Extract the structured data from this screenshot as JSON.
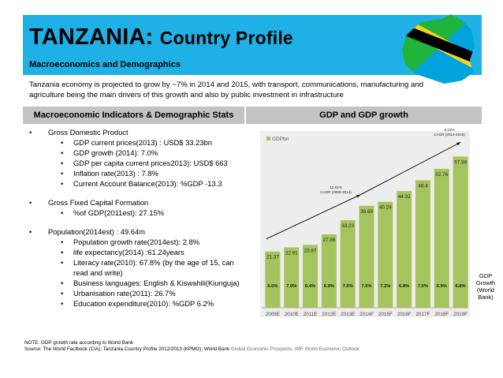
{
  "header": {
    "title_country": "TANZANIA:",
    "title_rest": "Country Profile",
    "subtitle": "Macroeconomics and Demographics"
  },
  "intro": "Tanzania economy is projected to grow by ~7% in 2014 and 2015, with transport, communications, manufacturing and agriculture being the main drivers of this growth and also by public investment in infrastructure",
  "left_panel": {
    "heading": "Macroeconomic Indicators & Demographic Stats",
    "gdp": {
      "label": "Gross Domestic Product",
      "items": [
        "GDP current prices(2013) : USD$ 33.23bn",
        "GDP growth (2014): 7.0%",
        "GDP per capita current prices2013): USD$ 663",
        "Inflation rate(2013) : 7.8%",
        "Current Account Balance(2013): %GDP -13.3"
      ]
    },
    "gfcf": {
      "label": "Gross Fixed Capital Formation",
      "items": [
        "%of GDP(2011est): 27.15%"
      ]
    },
    "population": {
      "label": "Population(2014est) : 49.64m",
      "items": [
        "Population growth rate(2014est): 2.8%",
        "life expectancy(2014) :61.24years",
        "Literacy rate(2010): 67.8% (by the age of 15, can read and write)",
        "Business languages: English & Kiswahili(Kiunguja)",
        "Urbanisation rate(2011): 26.7%",
        "Education expenditure(2010): %GDP 6.2%"
      ]
    }
  },
  "right_panel": {
    "heading": "GDP and GDP growth"
  },
  "chart_data": {
    "type": "bar",
    "categories": [
      "2009E",
      "2010E",
      "2011E",
      "2012E",
      "2013E",
      "2014F",
      "2015F",
      "2016F",
      "2017F",
      "2018F",
      "2019F"
    ],
    "series": [
      {
        "name": "GDPbn",
        "values": [
          21.37,
          22.91,
          23.87,
          27.86,
          33.23,
          38.69,
          40.24,
          44.32,
          48.4,
          52.76,
          57.39
        ]
      }
    ],
    "growth_labels": [
      "6.0%",
      "7.0%",
      "6.4%",
      "6.9%",
      "7.0%",
      "7.0%",
      "7.2%",
      "6.8%",
      "7.0%",
      "6.9%",
      "6.8%"
    ],
    "growth_series_label": "GDP Growth (World Bank)",
    "ylim": [
      0,
      65
    ],
    "annotations": [
      {
        "text_line1": "12.61%",
        "text_line2": "CAGR (2009-2014)"
      },
      {
        "text_line1": "8.21%",
        "text_line2": "CAGR (2014-2019)"
      }
    ],
    "colors": {
      "bar": "#a6c45e",
      "plot_bg": "#ededed",
      "arrow": "#000000"
    },
    "legend_position": "top-left",
    "grid": false
  },
  "footer": {
    "line1": "NOTE: GDP growth rate according to World Bank",
    "line2_dark": "Source: The World Factbook (CIA); Tanzania Country Profile 2012/2013 (KPMG); World Bank",
    "line2_grey": "Global Economic Prospects, IMF World Economic Outlook"
  },
  "icons": {
    "flag": "tanzania-flag-map-icon"
  }
}
